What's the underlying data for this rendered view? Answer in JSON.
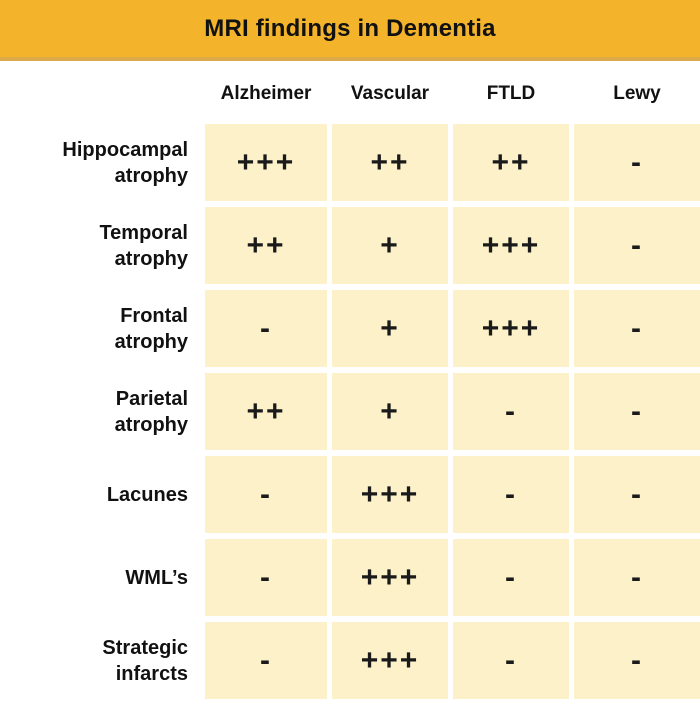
{
  "chart_data": {
    "type": "table",
    "title": "MRI findings in Dementia",
    "columns": [
      "Alzheimer",
      "Vascular",
      "FTLD",
      "Lewy"
    ],
    "rows": [
      {
        "label": "Hippocampal atrophy",
        "label_lines": [
          "Hippocampal",
          "atrophy"
        ],
        "values": [
          "+++",
          "++",
          "++",
          "-"
        ]
      },
      {
        "label": "Temporal atrophy",
        "label_lines": [
          "Temporal",
          "atrophy"
        ],
        "values": [
          "++",
          "+",
          "+++",
          "-"
        ]
      },
      {
        "label": "Frontal atrophy",
        "label_lines": [
          "Frontal",
          "atrophy"
        ],
        "values": [
          "-",
          "+",
          "+++",
          "-"
        ]
      },
      {
        "label": "Parietal atrophy",
        "label_lines": [
          "Parietal",
          "atrophy"
        ],
        "values": [
          "++",
          "+",
          "-",
          "-"
        ]
      },
      {
        "label": "Lacunes",
        "label_lines": [
          "Lacunes"
        ],
        "values": [
          "-",
          "+++",
          "-",
          "-"
        ]
      },
      {
        "label": "WML’s",
        "label_lines": [
          "WML’s"
        ],
        "values": [
          "-",
          "+++",
          "-",
          "-"
        ]
      },
      {
        "label": "Strategic infarcts",
        "label_lines": [
          "Strategic",
          "infarcts"
        ],
        "values": [
          "-",
          "+++",
          "-",
          "-"
        ]
      }
    ],
    "value_scale": [
      "+++",
      "++",
      "+",
      "-"
    ]
  },
  "colors": {
    "banner_bg": "#f3b32a",
    "banner_edge": "#dcaa4b",
    "cell_bg": "#fcf1c8",
    "text": "#1a1a1a",
    "background": "#ffffff"
  }
}
